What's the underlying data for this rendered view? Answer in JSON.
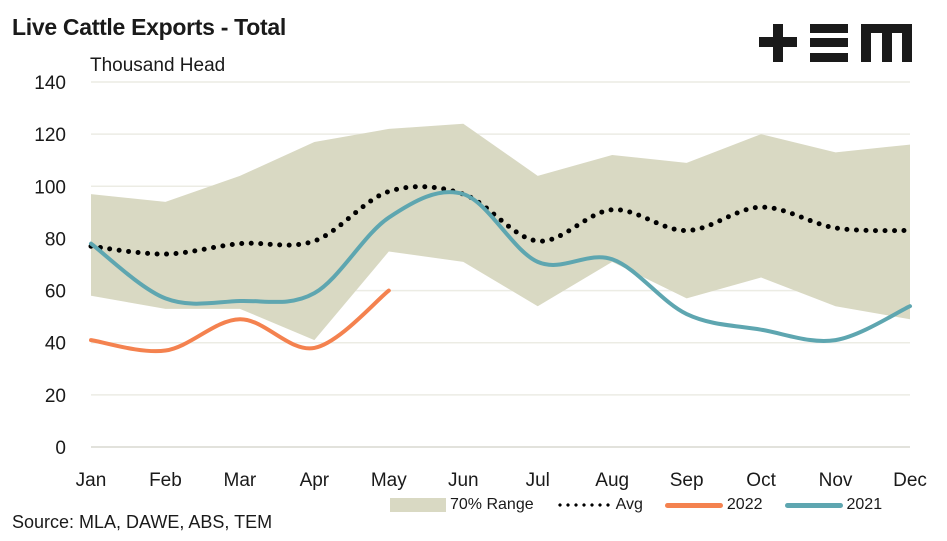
{
  "header": {
    "title": "Live Cattle Exports - Total",
    "unit": "Thousand Head",
    "logo_text": "+EM"
  },
  "footer": {
    "source": "Source: MLA, DAWE, ABS, TEM"
  },
  "colors": {
    "range": "#d9d9c3",
    "avg": "#000000",
    "y2022": "#f4824f",
    "y2021": "#5ea6b0",
    "grid": "#ecece4"
  },
  "chart_data": {
    "type": "line",
    "title": "Live Cattle Exports - Total",
    "ylabel": "Thousand Head",
    "xlabel": "",
    "ylim": [
      0,
      140
    ],
    "yticks": [
      0,
      20,
      40,
      60,
      80,
      100,
      120,
      140
    ],
    "grid": true,
    "legend_position": "bottom-right",
    "categories": [
      "Jan",
      "Feb",
      "Mar",
      "Apr",
      "May",
      "Jun",
      "Jul",
      "Aug",
      "Sep",
      "Oct",
      "Nov",
      "Dec"
    ],
    "range": {
      "name": "70% Range",
      "upper": [
        97,
        94,
        104,
        117,
        122,
        124,
        104,
        112,
        109,
        120,
        113,
        116
      ],
      "lower": [
        58,
        53,
        53,
        41,
        75,
        71,
        54,
        71,
        57,
        65,
        54,
        49
      ]
    },
    "series": [
      {
        "name": "Avg",
        "style": "dotted",
        "values": [
          77,
          74,
          78,
          79,
          98,
          97,
          79,
          91,
          83,
          92,
          84,
          83
        ]
      },
      {
        "name": "2022",
        "style": "solid",
        "values": [
          41,
          37,
          49,
          38,
          60
        ]
      },
      {
        "name": "2021",
        "style": "solid",
        "values": [
          78,
          57,
          56,
          59,
          88,
          97,
          71,
          72,
          51,
          45,
          41,
          54
        ]
      }
    ],
    "legend": [
      "70% Range",
      "Avg",
      "2022",
      "2021"
    ]
  }
}
